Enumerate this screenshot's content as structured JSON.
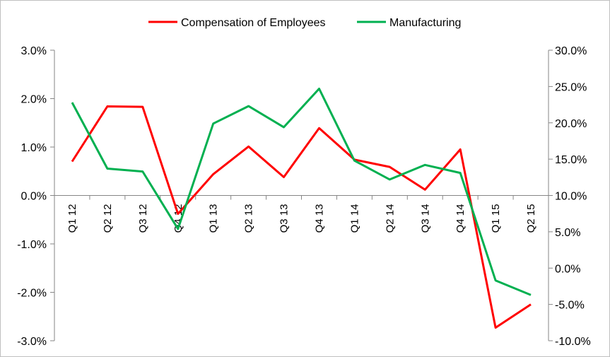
{
  "chart_data": {
    "type": "line",
    "categories": [
      "Q1 12",
      "Q2 12",
      "Q3 12",
      "Q4 12",
      "Q1 13",
      "Q2 13",
      "Q3 13",
      "Q4 13",
      "Q1 14",
      "Q2 14",
      "Q3 14",
      "Q4 14",
      "Q1 15",
      "Q2 15"
    ],
    "series": [
      {
        "name": "Compensation of Employees",
        "axis": "left",
        "color": "#ff0000",
        "values": [
          0.7,
          1.84,
          1.83,
          -0.38,
          0.44,
          1.01,
          0.38,
          1.39,
          0.74,
          0.59,
          0.12,
          0.95,
          -2.73,
          -2.25
        ]
      },
      {
        "name": "Manufacturing",
        "axis": "right",
        "color": "#00b050",
        "values": [
          22.8,
          13.7,
          13.3,
          5.4,
          19.9,
          22.3,
          19.4,
          24.7,
          14.8,
          12.2,
          14.2,
          13.1,
          -1.7,
          -3.7
        ]
      }
    ],
    "y_left": {
      "ylim": [
        -3.0,
        3.0
      ],
      "ticks": [
        3.0,
        2.0,
        1.0,
        0.0,
        -1.0,
        -2.0,
        -3.0
      ],
      "tick_labels": [
        "3.0%",
        "2.0%",
        "1.0%",
        "0.0%",
        "-1.0%",
        "-2.0%",
        "-3.0%"
      ]
    },
    "y_right": {
      "ylim": [
        -10.0,
        30.0
      ],
      "ticks": [
        30,
        25,
        20,
        15,
        10,
        5,
        0,
        -5,
        -10
      ],
      "tick_labels": [
        "30.0%",
        "25.0%",
        "20.0%",
        "15.0%",
        "10.0%",
        "5.0%",
        "0.0%",
        "-5.0%",
        "-10.0%"
      ]
    },
    "title": "",
    "xlabel": "",
    "ylabel": "",
    "grid": false,
    "legend_position": "top-center"
  }
}
